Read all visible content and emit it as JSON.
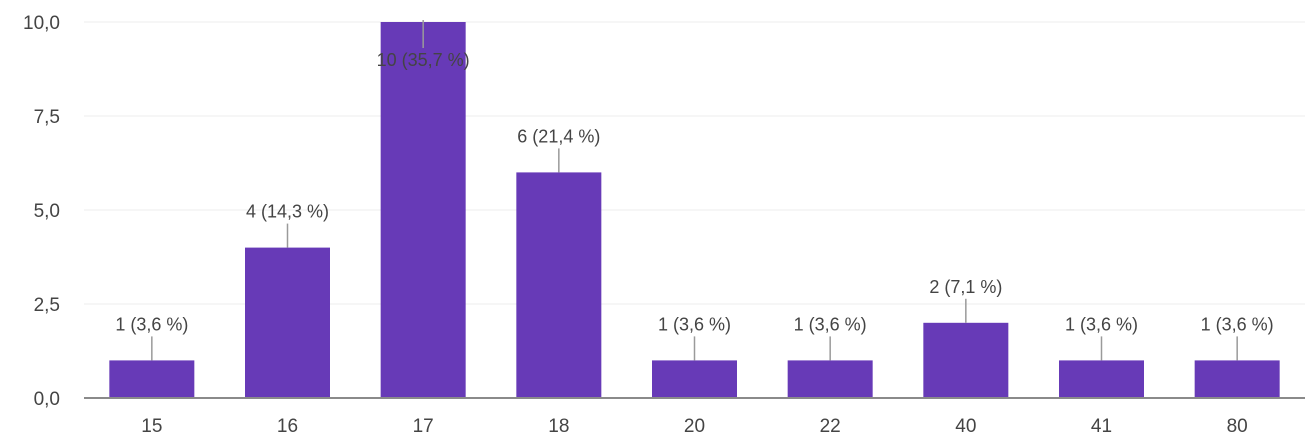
{
  "chart_data": {
    "type": "bar",
    "categories": [
      "15",
      "16",
      "17",
      "18",
      "20",
      "22",
      "40",
      "41",
      "80"
    ],
    "values": [
      1,
      4,
      10,
      6,
      1,
      1,
      2,
      1,
      1
    ],
    "data_labels": [
      "1 (3,6 %)",
      "4 (14,3 %)",
      "10 (35,7 %)",
      "6 (21,4 %)",
      "1 (3,6 %)",
      "1 (3,6 %)",
      "2 (7,1 %)",
      "1 (3,6 %)",
      "1 (3,6 %)"
    ],
    "y_ticks": [
      "0,0",
      "2,5",
      "5,0",
      "7,5",
      "10,0"
    ],
    "ylim": [
      0,
      10
    ],
    "grid": true,
    "bar_color": "#673ab7",
    "title": "",
    "xlabel": "",
    "ylabel": ""
  }
}
